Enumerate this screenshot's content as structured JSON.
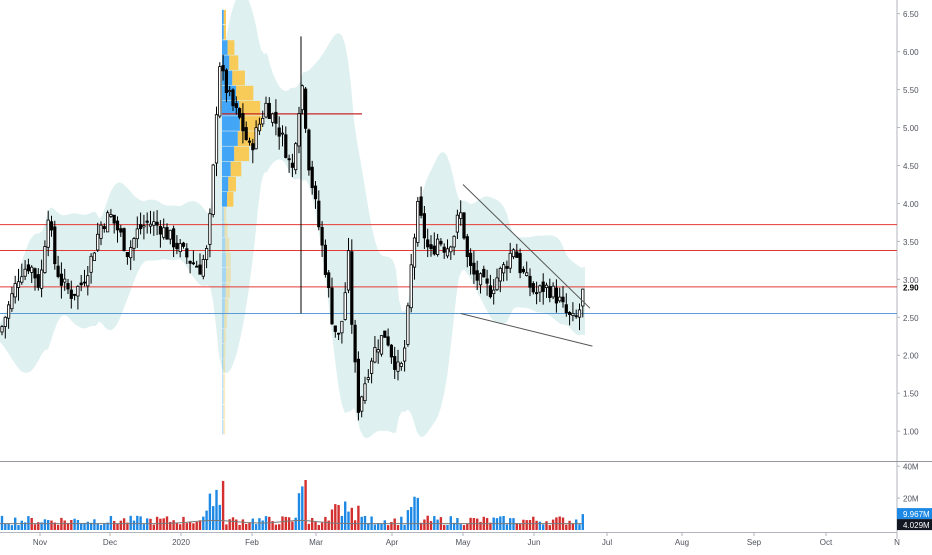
{
  "chart_data": {
    "type": "candlestick",
    "price_axis": {
      "ticks": [
        "6.50",
        "6.00",
        "5.50",
        "5.00",
        "4.50",
        "4.00",
        "3.50",
        "3.00",
        "2.50",
        "2.00",
        "1.50",
        "1.00"
      ],
      "range": [
        0.62,
        6.68
      ],
      "last_price_label": "2.90",
      "last_price": 2.9
    },
    "volume_axis": {
      "ticks": [
        "40M",
        "20M"
      ],
      "range": [
        0,
        42
      ],
      "last_volume_label": "9.967M",
      "last_volume": 9.967,
      "average_label": "4.029M",
      "average_volume": 4.029
    },
    "time_axis": {
      "ticks": [
        "Nov",
        "Dec",
        "2020",
        "Feb",
        "Mar",
        "Apr",
        "May",
        "Jun",
        "Jul",
        "Aug",
        "Sep",
        "Oct",
        "N"
      ]
    },
    "horizontal_levels": [
      {
        "price": 5.18,
        "color": "#c62828",
        "segment": true
      },
      {
        "price": 3.72,
        "color": "#e53935"
      },
      {
        "price": 3.38,
        "color": "#e53935"
      },
      {
        "price": 2.9,
        "color": "#e53935"
      },
      {
        "price": 2.55,
        "color": "#5b9bd5"
      }
    ],
    "pattern_lines": [
      {
        "from": [
          "2020-05-01",
          4.25
        ],
        "to": [
          "2020-06-24",
          2.62
        ]
      },
      {
        "from": [
          "2020-04-30",
          2.55
        ],
        "to": [
          "2020-06-25",
          2.12
        ]
      }
    ],
    "volume_profile_note_free": true,
    "colors": {
      "up_candle": "#ffffff",
      "down_candle": "#000000",
      "band_fill": "#dcefee",
      "vol_up": "#1e88e5",
      "vol_down": "#d32f2f",
      "profile_blue": "#42a5f5",
      "profile_orange": "#f9c74f"
    }
  }
}
